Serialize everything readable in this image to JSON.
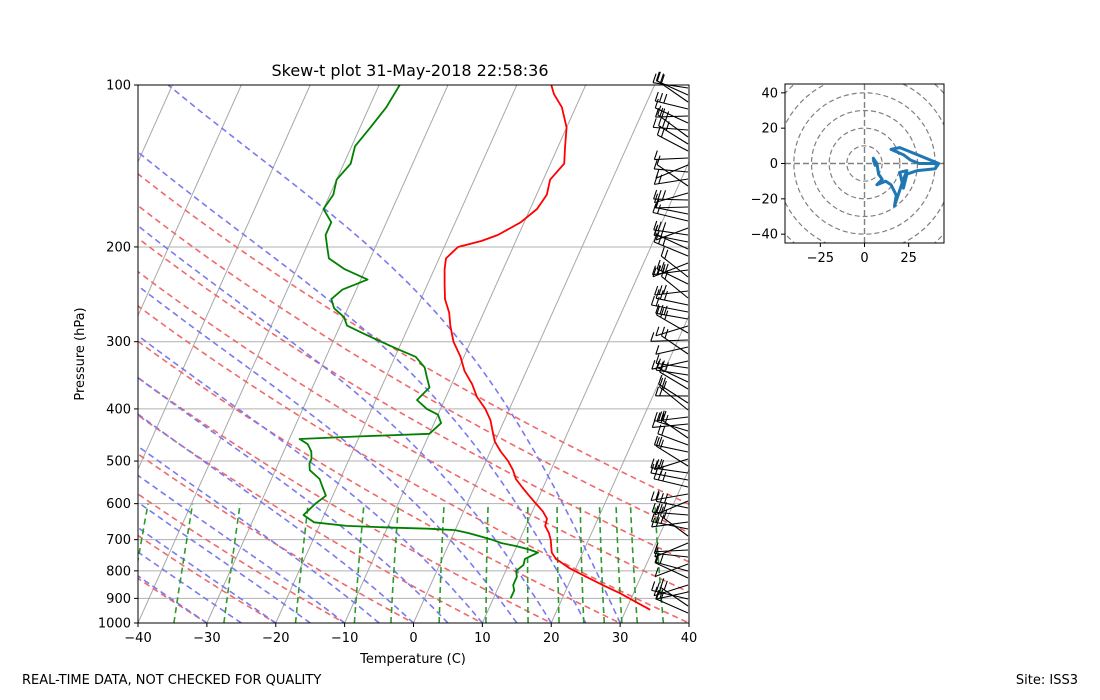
{
  "chart_data": [
    {
      "type": "skew-t",
      "title": "Skew-t plot 31-May-2018 22:58:36",
      "xlabel": "Temperature (C)",
      "ylabel": "Pressure (hPa)",
      "xlim": [
        -40,
        40
      ],
      "ylim": [
        1000,
        100
      ],
      "y_scale": "log",
      "x_ticks": [
        "−40",
        "−30",
        "−20",
        "−10",
        "0",
        "10",
        "20",
        "30",
        "40"
      ],
      "y_ticks": [
        "100",
        "200",
        "300",
        "400",
        "500",
        "600",
        "700",
        "800",
        "900",
        "1000"
      ],
      "grid": true,
      "series": [
        {
          "color": "#ff0000",
          "points": [
            [
              33.5,
              945
            ],
            [
              31,
              915
            ],
            [
              28,
              880
            ],
            [
              25,
              850
            ],
            [
              22,
              820
            ],
            [
              19,
              790
            ],
            [
              16.5,
              760
            ],
            [
              15.5,
              740
            ],
            [
              15,
              720
            ],
            [
              14.5,
              700
            ],
            [
              13.8,
              680
            ],
            [
              12.8,
              660
            ],
            [
              12.6,
              640
            ],
            [
              11.5,
              620
            ],
            [
              10,
              600
            ],
            [
              8.5,
              580
            ],
            [
              7,
              560
            ],
            [
              5.5,
              540
            ],
            [
              4.5,
              520
            ],
            [
              3.2,
              500
            ],
            [
              1.5,
              480
            ],
            [
              0,
              460
            ],
            [
              -1,
              440
            ],
            [
              -2,
              420
            ],
            [
              -3.5,
              400
            ],
            [
              -5.5,
              380
            ],
            [
              -7,
              360
            ],
            [
              -9,
              340
            ],
            [
              -10.5,
              320
            ],
            [
              -12.5,
              300
            ],
            [
              -14,
              280
            ],
            [
              -15,
              265
            ],
            [
              -16.5,
              250
            ],
            [
              -17.5,
              235
            ],
            [
              -18.5,
              220
            ],
            [
              -19,
              210
            ],
            [
              -18.5,
              205
            ],
            [
              -18,
              200
            ],
            [
              -15,
              195
            ],
            [
              -13,
              190
            ],
            [
              -10.5,
              180
            ],
            [
              -9,
              170
            ],
            [
              -8.5,
              160
            ],
            [
              -9,
              150
            ],
            [
              -8,
              140
            ],
            [
              -9,
              130
            ],
            [
              -10,
              120
            ],
            [
              -12,
              110
            ],
            [
              -14,
              104
            ],
            [
              -15,
              100
            ]
          ]
        },
        {
          "color": "#008000",
          "points": [
            [
              12.5,
              900
            ],
            [
              12.5,
              870
            ],
            [
              12,
              850
            ],
            [
              12,
              820
            ],
            [
              11.5,
              800
            ],
            [
              12.2,
              780
            ],
            [
              12,
              760
            ],
            [
              13.5,
              740
            ],
            [
              12,
              730
            ],
            [
              10,
              720
            ],
            [
              7.5,
              710
            ],
            [
              6,
              700
            ],
            [
              4,
              690
            ],
            [
              2,
              680
            ],
            [
              0,
              672
            ],
            [
              -4,
              668
            ],
            [
              -9,
              665
            ],
            [
              -16,
              660
            ],
            [
              -21,
              650
            ],
            [
              -23,
              630
            ],
            [
              -22,
              600
            ],
            [
              -21,
              580
            ],
            [
              -22,
              560
            ],
            [
              -23,
              540
            ],
            [
              -25,
              520
            ],
            [
              -25.5,
              505
            ],
            [
              -25.5,
              495
            ],
            [
              -26,
              480
            ],
            [
              -27,
              465
            ],
            [
              -28.5,
              455
            ],
            [
              -20,
              450
            ],
            [
              -10,
              445
            ],
            [
              -9,
              425
            ],
            [
              -10,
              410
            ],
            [
              -12,
              400
            ],
            [
              -14,
              385
            ],
            [
              -13,
              365
            ],
            [
              -14,
              350
            ],
            [
              -15,
              335
            ],
            [
              -17,
              320
            ],
            [
              -20,
              310
            ],
            [
              -23,
              300
            ],
            [
              -26,
              290
            ],
            [
              -29,
              280
            ],
            [
              -30,
              270
            ],
            [
              -32,
              260
            ],
            [
              -33,
              250
            ],
            [
              -32,
              240
            ],
            [
              -29,
              230
            ],
            [
              -33,
              220
            ],
            [
              -36,
              210
            ],
            [
              -37,
              200
            ],
            [
              -38,
              190
            ],
            [
              -38,
              180
            ],
            [
              -40,
              170
            ],
            [
              -39.5,
              160
            ],
            [
              -40,
              150
            ],
            [
              -39,
              140
            ],
            [
              -39.5,
              130
            ],
            [
              -38.5,
              120
            ],
            [
              -37.5,
              110
            ],
            [
              -37,
              100
            ]
          ]
        }
      ]
    },
    {
      "type": "hodograph",
      "xlim": [
        -45,
        45
      ],
      "ylim": [
        -45,
        45
      ],
      "x_ticks": [
        "−25",
        "0",
        "25"
      ],
      "y_ticks": [
        "40",
        "20",
        "0",
        "−20",
        "−40"
      ],
      "series": [
        {
          "color": "#1f77b4",
          "points": [
            [
              5,
              2
            ],
            [
              6,
              -1
            ],
            [
              5,
              3
            ],
            [
              7,
              0
            ],
            [
              8,
              -6
            ],
            [
              10,
              -9
            ],
            [
              7,
              -12
            ],
            [
              12,
              -10
            ],
            [
              15,
              -12
            ],
            [
              18,
              -18
            ],
            [
              17,
              -24
            ],
            [
              22,
              -9
            ],
            [
              24,
              -4
            ],
            [
              20,
              -5
            ],
            [
              22,
              -14
            ],
            [
              24,
              -6
            ],
            [
              30,
              -4
            ],
            [
              40,
              -3
            ],
            [
              42,
              0
            ],
            [
              30,
              5
            ],
            [
              20,
              9
            ],
            [
              15,
              8
            ],
            [
              22,
              5
            ],
            [
              26,
              2
            ],
            [
              31,
              0
            ],
            [
              42,
              0
            ]
          ]
        }
      ]
    }
  ],
  "footer": {
    "left": "REAL-TIME DATA, NOT CHECKED FOR QUALITY",
    "right": "Site: ISS3"
  }
}
